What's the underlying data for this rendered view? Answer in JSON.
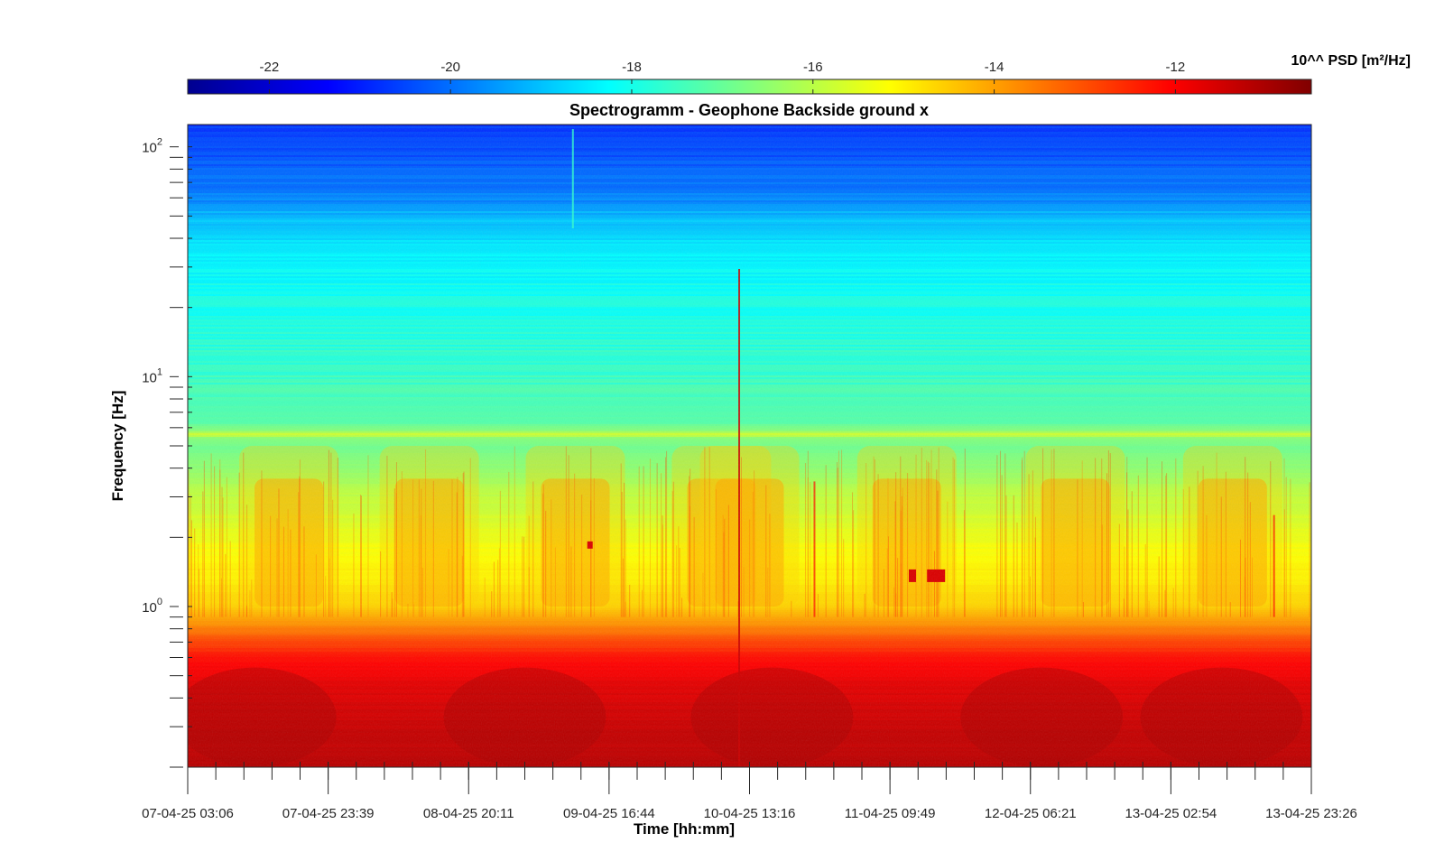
{
  "chart_data": {
    "type": "heatmap",
    "title": "Spectrogramm - Geophone Backside ground x",
    "xlabel": "Time [hh:mm]",
    "ylabel": "Frequency [Hz]",
    "y_scale": "log",
    "ylim": [
      0.2,
      125
    ],
    "xlim": [
      "07-04-25 03:06",
      "13-04-25 23:26"
    ],
    "x_ticks": [
      "07-04-25 03:06",
      "07-04-25 23:39",
      "08-04-25 20:11",
      "09-04-25 16:44",
      "10-04-25 13:16",
      "11-04-25 09:49",
      "12-04-25 06:21",
      "13-04-25 02:54",
      "13-04-25 23:26"
    ],
    "y_ticks": [
      {
        "base": "10",
        "exp": "0",
        "value": 1
      },
      {
        "base": "10",
        "exp": "1",
        "value": 10
      },
      {
        "base": "10",
        "exp": "2",
        "value": 100
      }
    ],
    "colorbar": {
      "label": "10^^ PSD [m²/Hz]",
      "range": [
        -22.9,
        -10.5
      ],
      "colormap": "jet",
      "ticks": [
        "-22",
        "-20",
        "-18",
        "-16",
        "-14",
        "-12"
      ],
      "tick_values": [
        -22,
        -20,
        -18,
        -16,
        -14,
        -12
      ]
    },
    "features": {
      "persistent_line_hz": 5.6,
      "diurnal_activity_band_hz": [
        1,
        3.5
      ],
      "microseism_band_hz": [
        0.2,
        0.7
      ]
    }
  }
}
